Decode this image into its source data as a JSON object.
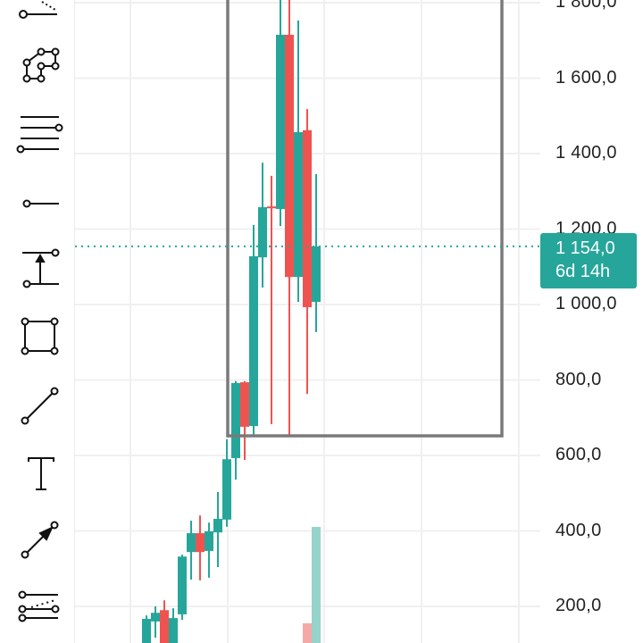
{
  "chart_data": {
    "type": "candlestick",
    "price_axis": {
      "ticks": [
        "1 800,0",
        "1 600,0",
        "1 400,0",
        "1 200,0",
        "1 000,0",
        "800,0",
        "600,0",
        "400,0",
        "200,0"
      ],
      "tick_values": [
        1800,
        1600,
        1400,
        1200,
        1000,
        800,
        600,
        400,
        200
      ],
      "visible_range": [
        0,
        1808
      ]
    },
    "candles": [
      {
        "o": 90,
        "h": 176,
        "l": 60,
        "c": 167
      },
      {
        "o": 160,
        "h": 200,
        "l": 117,
        "c": 183
      },
      {
        "o": 190,
        "h": 216,
        "l": 60,
        "c": 100
      },
      {
        "o": 90,
        "h": 195,
        "l": 60,
        "c": 169
      },
      {
        "o": 179,
        "h": 337,
        "l": 164,
        "c": 332
      },
      {
        "o": 344,
        "h": 427,
        "l": 271,
        "c": 394
      },
      {
        "o": 394,
        "h": 441,
        "l": 269,
        "c": 344
      },
      {
        "o": 347,
        "h": 422,
        "l": 276,
        "c": 399
      },
      {
        "o": 396,
        "h": 503,
        "l": 304,
        "c": 432
      },
      {
        "o": 430,
        "h": 643,
        "l": 411,
        "c": 590
      },
      {
        "o": 593,
        "h": 797,
        "l": 536,
        "c": 792
      },
      {
        "o": 794,
        "h": 797,
        "l": 588,
        "c": 676
      },
      {
        "o": 678,
        "h": 1211,
        "l": 654,
        "c": 1128
      },
      {
        "o": 1125,
        "h": 1376,
        "l": 1045,
        "c": 1258
      },
      {
        "o": 1260,
        "h": 1341,
        "l": 683,
        "c": 1255
      },
      {
        "o": 1253,
        "h": 1840,
        "l": 1208,
        "c": 1715
      },
      {
        "o": 1715,
        "h": 1840,
        "l": 654,
        "c": 1073
      },
      {
        "o": 1073,
        "h": 1753,
        "l": 1007,
        "c": 1457
      },
      {
        "o": 1462,
        "h": 1518,
        "l": 763,
        "c": 993
      },
      {
        "o": 1007,
        "h": 1346,
        "l": 927,
        "c": 1154
      }
    ],
    "volume_relative": [
      0,
      0,
      0,
      0,
      0,
      0,
      0,
      0,
      0,
      0,
      0,
      0,
      0,
      0,
      0,
      0,
      0,
      0,
      0.17,
      1.0
    ],
    "last_price": "1 154,0",
    "countdown": "6d 14h",
    "rectangle_drawing": {
      "price_low": 652,
      "price_high": 1900,
      "from_candle": 9,
      "to_candle": 40
    },
    "colors": {
      "up": "#26a69a",
      "down": "#ef5350",
      "up_volume": "#95d3cb",
      "down_volume": "#f4a9a7",
      "rectangle": "#7a7a7a",
      "grid": "#f0f0f0"
    }
  },
  "toolbar": {
    "tools": [
      "trend-angle",
      "polyline-path",
      "parallel-lines",
      "horizontal-ray",
      "long-short-position",
      "rectangle",
      "trend-line",
      "text",
      "arrow",
      "pitchfork"
    ]
  }
}
